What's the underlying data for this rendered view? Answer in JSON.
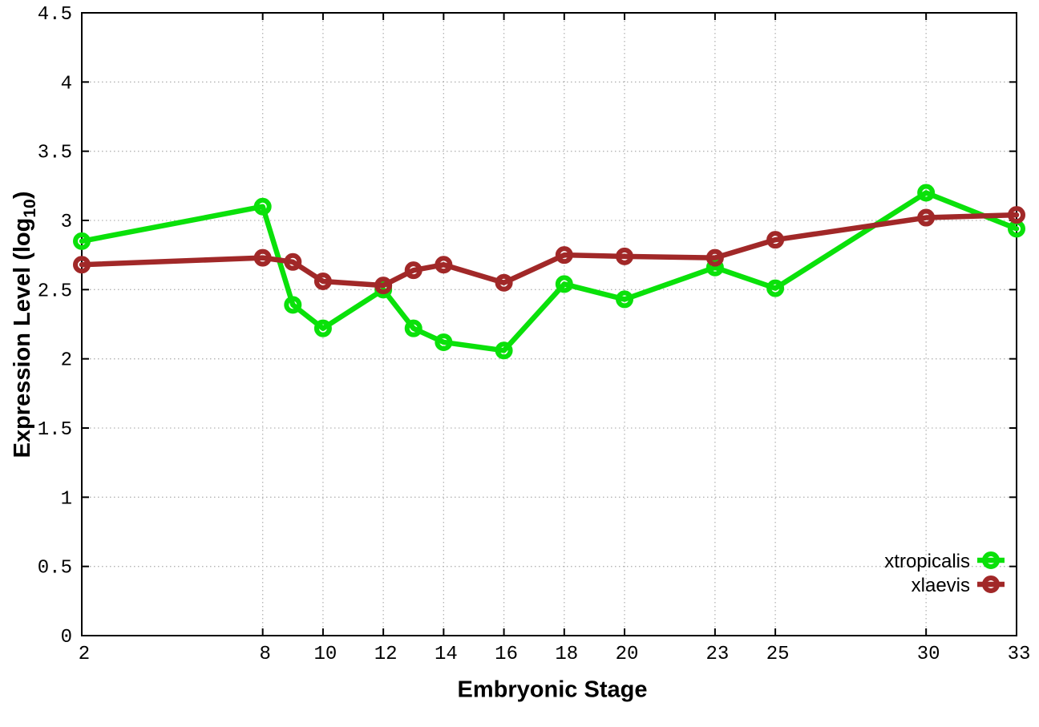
{
  "figure": {
    "xlabel": "Embryonic Stage",
    "ylabel_prefix": "Expression Level (log",
    "ylabel_subscript": "10",
    "ylabel_suffix": ")"
  },
  "chart_data": {
    "type": "line",
    "title": "",
    "xlabel": "Embryonic Stage",
    "ylabel": "Expression Level (log10)",
    "x": [
      2,
      8,
      9,
      10,
      12,
      13,
      14,
      16,
      18,
      20,
      23,
      25,
      30,
      33
    ],
    "series": [
      {
        "name": "xtropicalis",
        "color": "#0ae10a",
        "values": [
          2.85,
          3.1,
          2.39,
          2.22,
          2.5,
          2.22,
          2.12,
          2.06,
          2.54,
          2.43,
          2.66,
          2.51,
          3.2,
          2.94
        ]
      },
      {
        "name": "xlaevis",
        "color": "#a12828",
        "values": [
          2.68,
          2.73,
          2.7,
          2.56,
          2.53,
          2.64,
          2.68,
          2.55,
          2.75,
          2.74,
          2.73,
          2.86,
          3.02,
          3.04
        ]
      }
    ],
    "xlim": [
      2,
      33
    ],
    "ylim": [
      0,
      4.5
    ],
    "xticks": [
      2,
      8,
      10,
      12,
      14,
      16,
      18,
      20,
      23,
      25,
      30,
      33
    ],
    "xtick_labels": [
      "2",
      "8",
      "10",
      "12",
      "14",
      "16",
      "18",
      "20",
      "23",
      "25",
      "30",
      "33"
    ],
    "yticks": [
      0,
      0.5,
      1,
      1.5,
      2,
      2.5,
      3,
      3.5,
      4,
      4.5
    ],
    "ytick_labels": [
      "0",
      "0.5",
      "1",
      "1.5",
      "2",
      "2.5",
      "3",
      "3.5",
      "4",
      "4.5"
    ],
    "grid": true,
    "legend_position": "bottom-right",
    "style": {
      "grid_color": "#b4b4b4",
      "border_color": "#000000",
      "tick_label_color": "#000000",
      "background": "#ffffff"
    }
  }
}
